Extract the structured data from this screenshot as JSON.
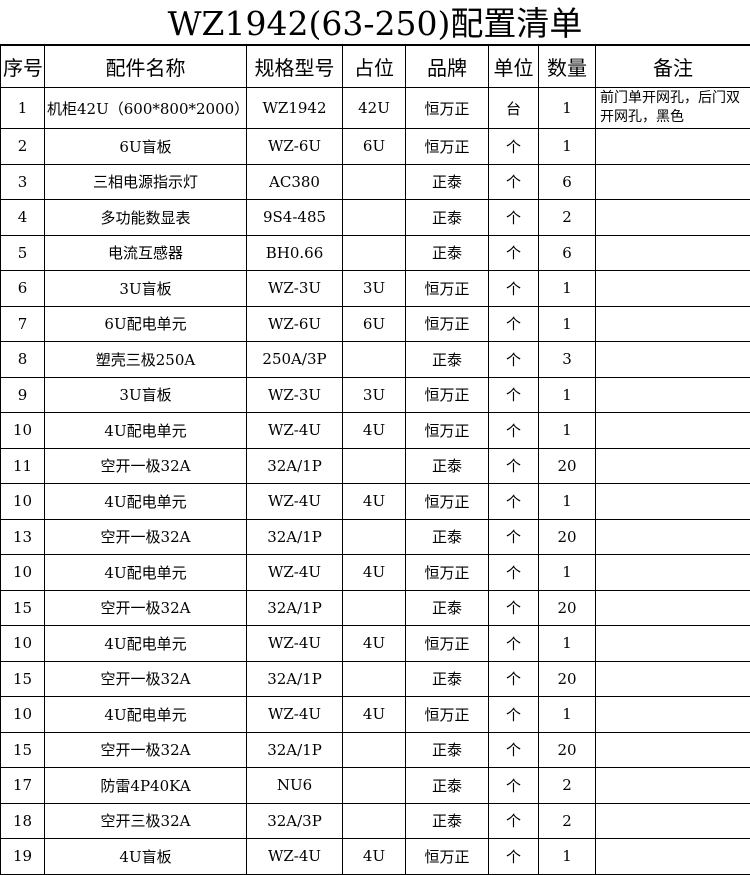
{
  "title": "WZ1942(63-250)配置清单",
  "table": {
    "headers": [
      "序号",
      "配件名称",
      "规格型号",
      "占位",
      "品牌",
      "单位",
      "数量",
      "备注"
    ],
    "rows": [
      [
        "1",
        "机柜42U（600*800*2000）",
        "WZ1942",
        "42U",
        "恒万正",
        "台",
        "1",
        "前门单开网孔，后门双开网孔，黑色"
      ],
      [
        "2",
        "6U盲板",
        "WZ-6U",
        "6U",
        "恒万正",
        "个",
        "1",
        null
      ],
      [
        "3",
        "三相电源指示灯",
        "AC380",
        null,
        "正泰",
        "个",
        "6",
        null
      ],
      [
        "4",
        "多功能数显表",
        "9S4-485",
        null,
        "正泰",
        "个",
        "2",
        null
      ],
      [
        "5",
        "电流互感器",
        "BH0.66",
        null,
        "正泰",
        "个",
        "6",
        null
      ],
      [
        "6",
        "3U盲板",
        "WZ-3U",
        "3U",
        "恒万正",
        "个",
        "1",
        null
      ],
      [
        "7",
        "6U配电单元",
        "WZ-6U",
        "6U",
        "恒万正",
        "个",
        "1",
        null
      ],
      [
        "8",
        "塑壳三极250A",
        "250A/3P",
        null,
        "正泰",
        "个",
        "3",
        null
      ],
      [
        "9",
        "3U盲板",
        "WZ-3U",
        "3U",
        "恒万正",
        "个",
        "1",
        null
      ],
      [
        "10",
        "4U配电单元",
        "WZ-4U",
        "4U",
        "恒万正",
        "个",
        "1",
        null
      ],
      [
        "11",
        "空开一极32A",
        "32A/1P",
        null,
        "正泰",
        "个",
        "20",
        null
      ],
      [
        "10",
        "4U配电单元",
        "WZ-4U",
        "4U",
        "恒万正",
        "个",
        "1",
        null
      ],
      [
        "13",
        "空开一极32A",
        "32A/1P",
        null,
        "正泰",
        "个",
        "20",
        null
      ],
      [
        "10",
        "4U配电单元",
        "WZ-4U",
        "4U",
        "恒万正",
        "个",
        "1",
        null
      ],
      [
        "15",
        "空开一极32A",
        "32A/1P",
        null,
        "正泰",
        "个",
        "20",
        null
      ],
      [
        "10",
        "4U配电单元",
        "WZ-4U",
        "4U",
        "恒万正",
        "个",
        "1",
        null
      ],
      [
        "15",
        "空开一极32A",
        "32A/1P",
        null,
        "正泰",
        "个",
        "20",
        null
      ],
      [
        "10",
        "4U配电单元",
        "WZ-4U",
        "4U",
        "恒万正",
        "个",
        "1",
        null
      ],
      [
        "15",
        "空开一极32A",
        "32A/1P",
        null,
        "正泰",
        "个",
        "20",
        null
      ],
      [
        "17",
        "防雷4P40KA",
        "NU6",
        null,
        "正泰",
        "个",
        "2",
        null
      ],
      [
        "18",
        "空开三极32A",
        "32A/3P",
        null,
        "正泰",
        "个",
        "2",
        null
      ],
      [
        "19",
        "4U盲板",
        "WZ-4U",
        "4U",
        "恒万正",
        "个",
        "1",
        null
      ]
    ]
  }
}
